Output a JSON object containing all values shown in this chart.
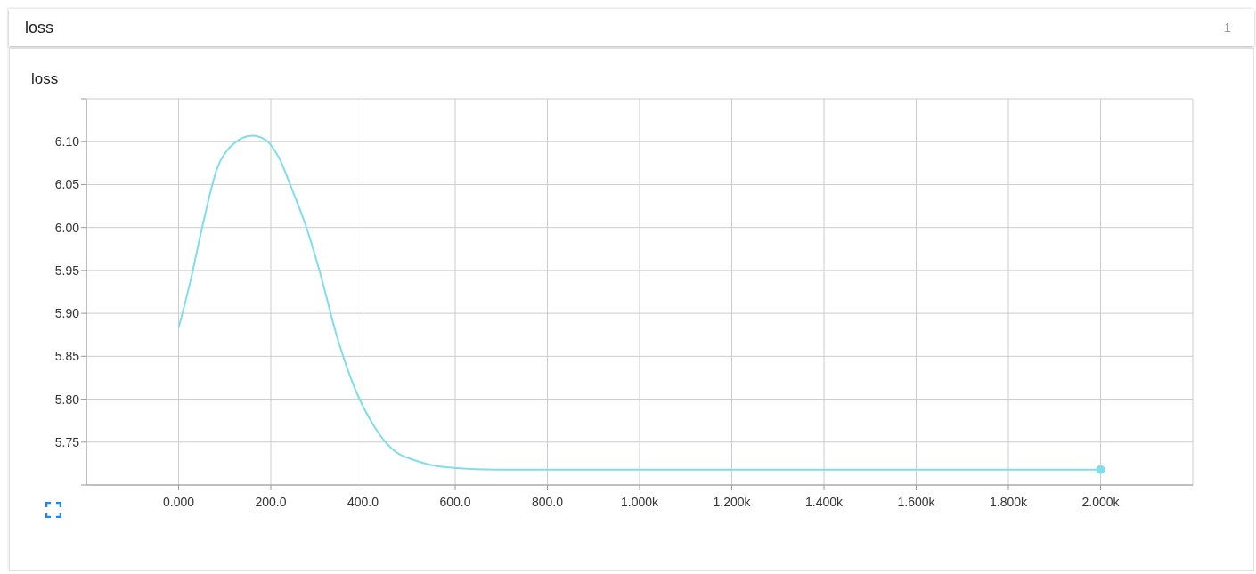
{
  "chart_data": {
    "type": "line",
    "title": "loss",
    "subtitle": "loss",
    "annotations": [
      "1"
    ],
    "x": [
      0,
      25,
      54,
      83,
      112,
      160,
      189,
      218,
      247,
      276,
      305,
      343,
      382,
      420,
      459,
      517,
      575,
      690,
      1000,
      1400,
      1800,
      2000
    ],
    "series": [
      {
        "color": "#80deea",
        "values": [
          5.883,
          5.936,
          6.007,
          6.068,
          6.094,
          6.107,
          6.102,
          6.081,
          6.043,
          6.002,
          5.951,
          5.874,
          5.813,
          5.772,
          5.744,
          5.728,
          5.721,
          5.718,
          5.718,
          5.718,
          5.718,
          5.718
        ]
      }
    ],
    "xlim": [
      -200,
      2200
    ],
    "xticks": [
      {
        "value": 0,
        "label": "0.000"
      },
      {
        "value": 200,
        "label": "200.0"
      },
      {
        "value": 400,
        "label": "400.0"
      },
      {
        "value": 600,
        "label": "600.0"
      },
      {
        "value": 800,
        "label": "800.0"
      },
      {
        "value": 1000,
        "label": "1.000k"
      },
      {
        "value": 1200,
        "label": "1.200k"
      },
      {
        "value": 1400,
        "label": "1.400k"
      },
      {
        "value": 1600,
        "label": "1.600k"
      },
      {
        "value": 1800,
        "label": "1.800k"
      },
      {
        "value": 2000,
        "label": "2.000k"
      }
    ],
    "ylim": [
      5.7,
      6.15
    ],
    "yticks": [
      {
        "value": 5.7,
        "label": null
      },
      {
        "value": 5.75,
        "label": "5.75"
      },
      {
        "value": 5.8,
        "label": "5.80"
      },
      {
        "value": 5.85,
        "label": "5.85"
      },
      {
        "value": 5.9,
        "label": "5.90"
      },
      {
        "value": 5.95,
        "label": "5.95"
      },
      {
        "value": 6.0,
        "label": "6.00"
      },
      {
        "value": 6.05,
        "label": "6.05"
      },
      {
        "value": 6.1,
        "label": "6.10"
      },
      {
        "value": 6.15,
        "label": null
      }
    ],
    "grid": true,
    "legend": false,
    "line_style": "solid"
  }
}
